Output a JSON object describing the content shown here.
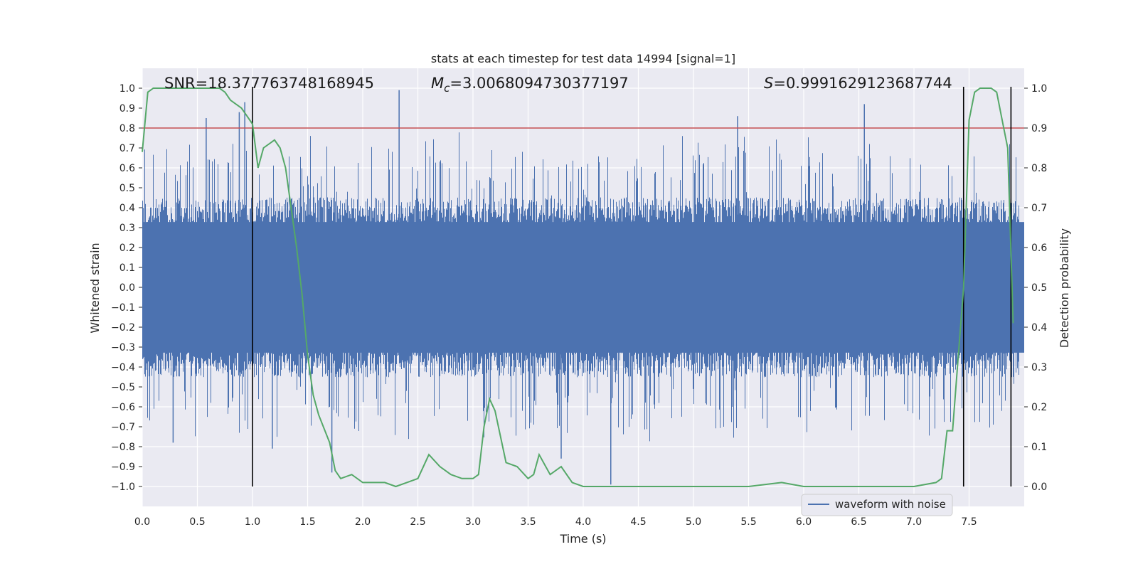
{
  "chart_data": {
    "type": "line",
    "title": "stats at each timestep for test data 14994 [signal=1]",
    "xlabel": "Time (s)",
    "ylabel": "Whitened strain",
    "y2label": "Detection probability",
    "xlim": [
      0.0,
      8.0
    ],
    "ylim": [
      -1.1,
      1.1
    ],
    "y2lim": [
      -0.05,
      1.05
    ],
    "xticks": [
      "0.0",
      "0.5",
      "1.0",
      "1.5",
      "2.0",
      "2.5",
      "3.0",
      "3.5",
      "4.0",
      "4.5",
      "5.0",
      "5.5",
      "6.0",
      "6.5",
      "7.0",
      "7.5"
    ],
    "yticks": [
      "1.0",
      "0.9",
      "0.8",
      "0.7",
      "0.6",
      "0.5",
      "0.4",
      "0.3",
      "0.2",
      "0.1",
      "0.0",
      "−0.1",
      "−0.2",
      "−0.3",
      "−0.4",
      "−0.5",
      "−0.6",
      "−0.7",
      "−0.8",
      "−0.9",
      "−1.0"
    ],
    "y2ticks": [
      "1.0",
      "0.9",
      "0.8",
      "0.7",
      "0.6",
      "0.5",
      "0.4",
      "0.3",
      "0.2",
      "0.1",
      "0.0"
    ],
    "annotations": {
      "snr": "SNR=18.377763748168945",
      "mc_symbol": "M",
      "mc_sub": "c",
      "mc_value": "=3.0068094730377197",
      "s_symbol": "S",
      "s_value": "=0.9991629123687744"
    },
    "legend": {
      "label": "waveform with noise",
      "position": "lower-right"
    },
    "threshold_line": {
      "axis": "right",
      "value": 0.9,
      "color": "#c44e52"
    },
    "vertical_lines": [
      1.0,
      7.45,
      7.88
    ],
    "series": [
      {
        "name": "waveform with noise",
        "axis": "left",
        "color": "#4c72b0",
        "kind": "noise-envelope",
        "core_amplitude": 0.4,
        "spike_peaks": [
          {
            "x": 0.58,
            "y": 0.85
          },
          {
            "x": 0.88,
            "y": 0.88
          },
          {
            "x": 0.93,
            "y": 0.93
          },
          {
            "x": 2.33,
            "y": 0.99
          },
          {
            "x": 5.4,
            "y": 0.86
          },
          {
            "x": 6.55,
            "y": 0.92
          },
          {
            "x": 4.25,
            "y": -0.99
          },
          {
            "x": 1.72,
            "y": -0.93
          },
          {
            "x": 3.8,
            "y": -0.86
          },
          {
            "x": 0.28,
            "y": -0.78
          },
          {
            "x": 1.18,
            "y": -0.81
          }
        ]
      },
      {
        "name": "detection probability",
        "axis": "right",
        "color": "#55a868",
        "x": [
          0.0,
          0.05,
          0.1,
          0.2,
          0.3,
          0.4,
          0.5,
          0.6,
          0.7,
          0.75,
          0.8,
          0.85,
          0.9,
          0.95,
          1.0,
          1.05,
          1.1,
          1.2,
          1.25,
          1.3,
          1.35,
          1.4,
          1.45,
          1.5,
          1.55,
          1.6,
          1.7,
          1.75,
          1.8,
          1.9,
          2.0,
          2.1,
          2.2,
          2.3,
          2.4,
          2.5,
          2.6,
          2.7,
          2.8,
          2.9,
          3.0,
          3.05,
          3.1,
          3.15,
          3.2,
          3.3,
          3.4,
          3.5,
          3.55,
          3.6,
          3.7,
          3.8,
          3.9,
          4.0,
          4.3,
          4.7,
          5.0,
          5.5,
          5.8,
          6.0,
          6.5,
          7.0,
          7.2,
          7.25,
          7.3,
          7.35,
          7.4,
          7.45,
          7.5,
          7.55,
          7.6,
          7.7,
          7.75,
          7.8,
          7.85,
          7.9
        ],
        "y": [
          0.84,
          0.99,
          1.0,
          1.0,
          1.0,
          1.0,
          1.0,
          1.0,
          1.0,
          0.99,
          0.97,
          0.96,
          0.95,
          0.93,
          0.91,
          0.8,
          0.85,
          0.87,
          0.85,
          0.8,
          0.7,
          0.6,
          0.48,
          0.33,
          0.23,
          0.18,
          0.11,
          0.04,
          0.02,
          0.03,
          0.01,
          0.01,
          0.01,
          0.0,
          0.01,
          0.02,
          0.08,
          0.05,
          0.03,
          0.02,
          0.02,
          0.03,
          0.15,
          0.22,
          0.19,
          0.06,
          0.05,
          0.02,
          0.03,
          0.08,
          0.03,
          0.05,
          0.01,
          0.0,
          0.0,
          0.0,
          0.0,
          0.0,
          0.01,
          0.0,
          0.0,
          0.0,
          0.01,
          0.02,
          0.14,
          0.14,
          0.32,
          0.5,
          0.92,
          0.99,
          1.0,
          1.0,
          0.99,
          0.92,
          0.85,
          0.41
        ]
      }
    ]
  }
}
